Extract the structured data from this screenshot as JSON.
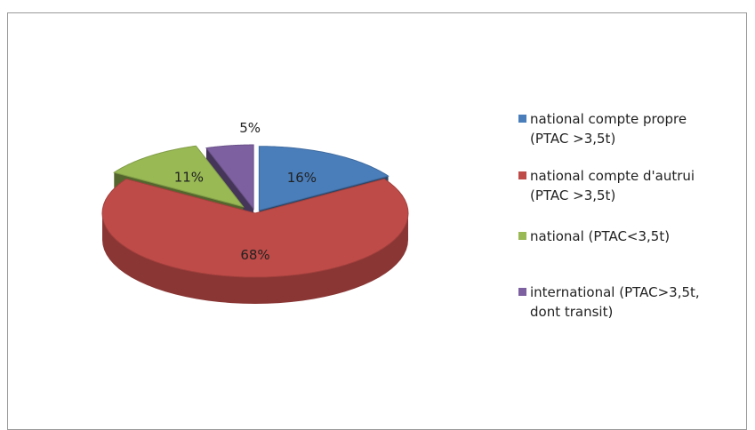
{
  "chart_data": {
    "type": "pie",
    "title": "",
    "categories": [
      "national compte propre\n(PTAC >3,5t)",
      "national compte d'autrui\n(PTAC >3,5t)",
      "national (PTAC<3,5t)",
      "international (PTAC>3,5t,\ndont transit)"
    ],
    "values": [
      16,
      68,
      11,
      5
    ],
    "data_labels": [
      "16%",
      "68%",
      "11%",
      "5%"
    ],
    "colors": [
      "#4a7ebb",
      "#be4b48",
      "#98b954",
      "#7d60a0"
    ],
    "style": "3d-exploded",
    "legend_position": "right"
  }
}
